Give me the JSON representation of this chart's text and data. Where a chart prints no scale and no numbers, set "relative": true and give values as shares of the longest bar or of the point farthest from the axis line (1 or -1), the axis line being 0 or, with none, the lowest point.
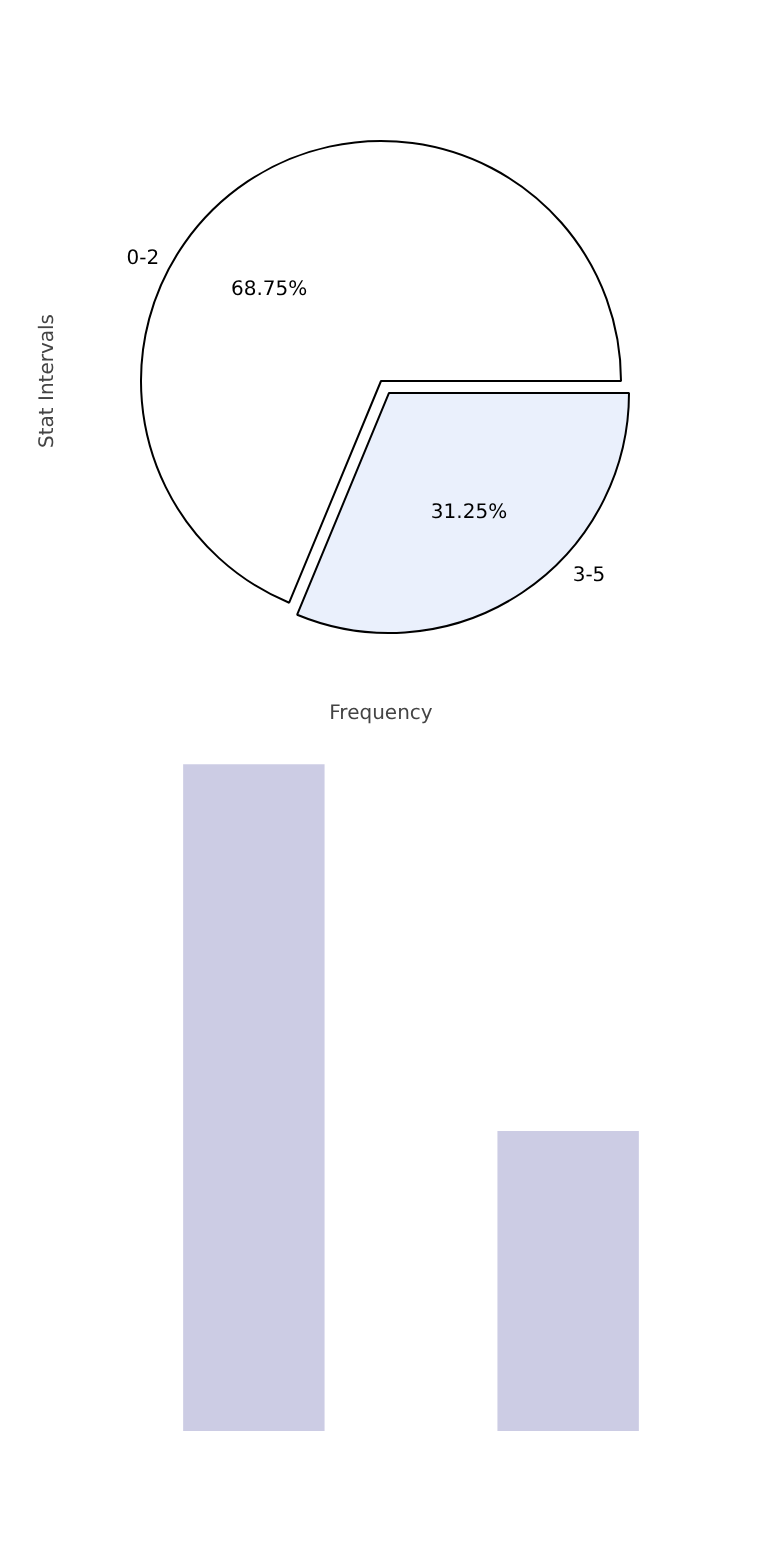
{
  "chart_data": [
    {
      "type": "pie",
      "xlabel": "Frequency",
      "ylabel": "Stat Intervals",
      "categories": [
        "0-2",
        "3-5"
      ],
      "values": [
        68.75,
        31.25
      ],
      "colors": [
        "#ffffff",
        "#eaf0fc"
      ],
      "value_labels": [
        "68.75%",
        "31.25%"
      ]
    },
    {
      "type": "bar",
      "categories": [
        null,
        null
      ],
      "values": [
        1,
        0.45
      ],
      "color": "#cccce4",
      "relative": true
    }
  ]
}
